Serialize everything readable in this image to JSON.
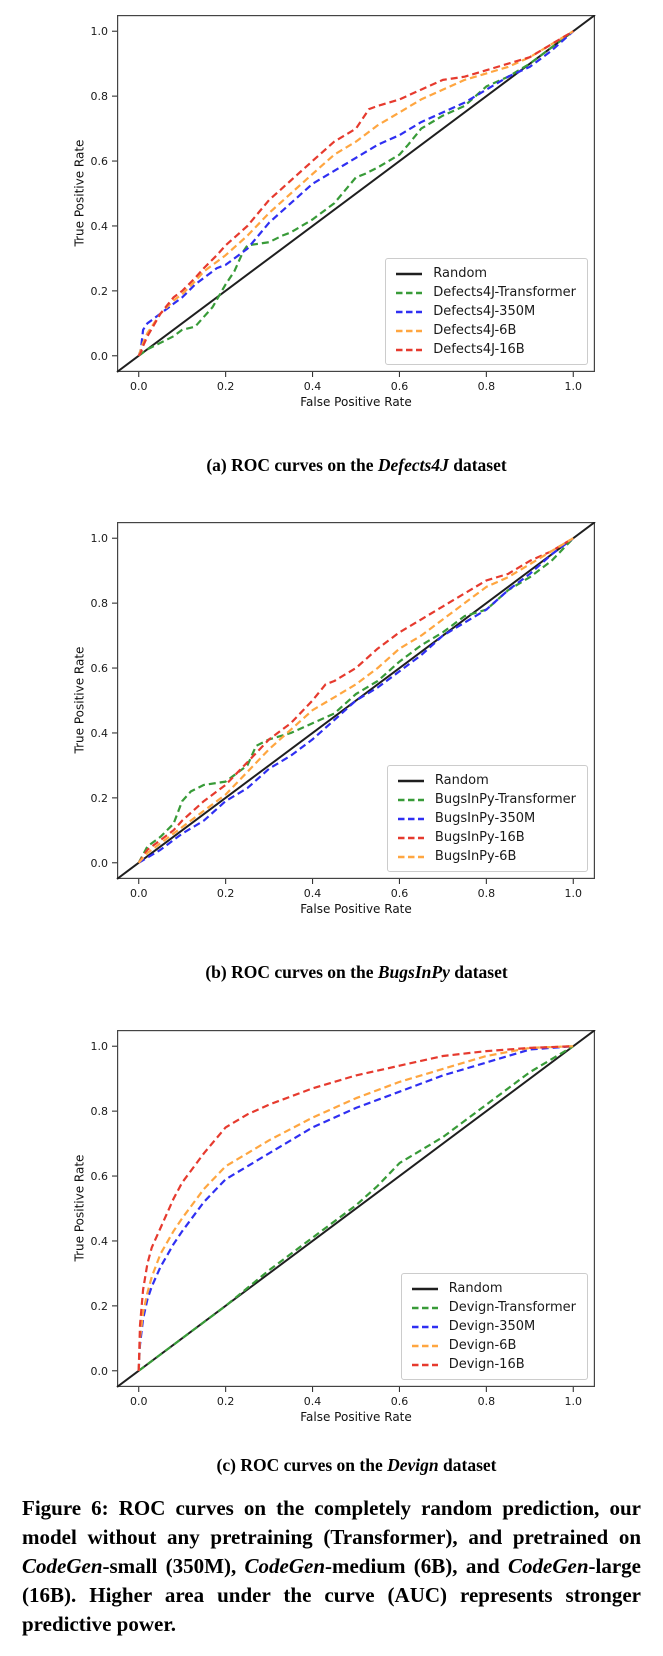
{
  "figure": {
    "caption": {
      "p1": "Figure 6: ROC curves on the completely random prediction, our model without any pretraining (Transformer), and pretrained on ",
      "i1": "CodeGen",
      "p2": "-small (350M), ",
      "i2": "CodeGen",
      "p3": "-medium (6B), and ",
      "i3": "CodeGen",
      "p4": "-large (16B). Higher area under the curve (AUC) represents stronger predictive power."
    }
  },
  "colors": {
    "random": "#1f1f1f",
    "transformer_green": "#389b38",
    "m350_blue": "#2f2ff2",
    "b6_orange": "#ffa640",
    "b16_red": "#e63a2e",
    "legend_border": "#cccccc",
    "spine": "#444444"
  },
  "chart_data": [
    {
      "type": "line",
      "id": "a",
      "caption_prefix": "(a) ROC curves on the ",
      "caption_dataset": "Defects4J",
      "caption_suffix": " dataset",
      "xlabel": "False Positive Rate",
      "ylabel": "True Positive Rate",
      "xlim": [
        -0.05,
        1.05
      ],
      "ylim": [
        -0.05,
        1.05
      ],
      "xticks": [
        0.0,
        0.2,
        0.4,
        0.6,
        0.8,
        1.0
      ],
      "yticks": [
        0.0,
        0.2,
        0.4,
        0.6,
        0.8,
        1.0
      ],
      "grid": false,
      "legend_position": "lower right",
      "series": [
        {
          "name": "Random",
          "color": "#1f1f1f",
          "style": "solid",
          "x": [
            -0.05,
            1.05
          ],
          "y": [
            -0.05,
            1.05
          ]
        },
        {
          "name": "Defects4J-Transformer",
          "color": "#389b38",
          "style": "dashed",
          "x": [
            0,
            0.02,
            0.05,
            0.08,
            0.1,
            0.13,
            0.15,
            0.17,
            0.2,
            0.22,
            0.24,
            0.25,
            0.3,
            0.33,
            0.35,
            0.4,
            0.45,
            0.5,
            0.52,
            0.55,
            0.6,
            0.62,
            0.65,
            0.7,
            0.75,
            0.8,
            0.85,
            0.9,
            0.95,
            1.0
          ],
          "y": [
            0,
            0.02,
            0.04,
            0.06,
            0.08,
            0.09,
            0.12,
            0.15,
            0.22,
            0.26,
            0.32,
            0.34,
            0.35,
            0.37,
            0.38,
            0.42,
            0.47,
            0.55,
            0.56,
            0.58,
            0.62,
            0.65,
            0.7,
            0.74,
            0.77,
            0.83,
            0.86,
            0.9,
            0.95,
            1.0
          ]
        },
        {
          "name": "Defects4J-350M",
          "color": "#2f2ff2",
          "style": "dashed",
          "x": [
            0,
            0.005,
            0.01,
            0.02,
            0.03,
            0.05,
            0.08,
            0.1,
            0.13,
            0.15,
            0.18,
            0.2,
            0.25,
            0.3,
            0.35,
            0.4,
            0.45,
            0.5,
            0.55,
            0.6,
            0.65,
            0.7,
            0.75,
            0.8,
            0.85,
            0.9,
            0.95,
            1.0
          ],
          "y": [
            0,
            0.02,
            0.08,
            0.1,
            0.11,
            0.13,
            0.16,
            0.18,
            0.22,
            0.24,
            0.27,
            0.28,
            0.33,
            0.41,
            0.47,
            0.53,
            0.57,
            0.61,
            0.65,
            0.68,
            0.72,
            0.75,
            0.78,
            0.82,
            0.86,
            0.89,
            0.94,
            1.0
          ]
        },
        {
          "name": "Defects4J-6B",
          "color": "#ffa640",
          "style": "dashed",
          "x": [
            0,
            0.005,
            0.01,
            0.02,
            0.05,
            0.08,
            0.1,
            0.13,
            0.15,
            0.18,
            0.2,
            0.25,
            0.3,
            0.35,
            0.4,
            0.45,
            0.5,
            0.55,
            0.6,
            0.65,
            0.7,
            0.75,
            0.8,
            0.85,
            0.9,
            0.95,
            1.0
          ],
          "y": [
            0,
            0.02,
            0.04,
            0.07,
            0.13,
            0.17,
            0.19,
            0.23,
            0.26,
            0.29,
            0.31,
            0.37,
            0.44,
            0.5,
            0.56,
            0.62,
            0.66,
            0.71,
            0.75,
            0.79,
            0.82,
            0.85,
            0.87,
            0.89,
            0.92,
            0.96,
            1.0
          ]
        },
        {
          "name": "Defects4J-16B",
          "color": "#e63a2e",
          "style": "dashed",
          "x": [
            0,
            0.005,
            0.01,
            0.02,
            0.05,
            0.08,
            0.1,
            0.13,
            0.15,
            0.18,
            0.2,
            0.25,
            0.3,
            0.35,
            0.4,
            0.45,
            0.5,
            0.53,
            0.55,
            0.6,
            0.65,
            0.7,
            0.75,
            0.8,
            0.85,
            0.9,
            0.95,
            1.0
          ],
          "y": [
            0,
            0.01,
            0.03,
            0.06,
            0.13,
            0.18,
            0.2,
            0.24,
            0.27,
            0.31,
            0.34,
            0.4,
            0.48,
            0.54,
            0.6,
            0.66,
            0.7,
            0.76,
            0.77,
            0.79,
            0.82,
            0.85,
            0.86,
            0.88,
            0.9,
            0.92,
            0.96,
            1.0
          ]
        }
      ]
    },
    {
      "type": "line",
      "id": "b",
      "caption_prefix": "(b) ROC curves on the ",
      "caption_dataset": "BugsInPy",
      "caption_suffix": " dataset",
      "xlabel": "False Positive Rate",
      "ylabel": "True Positive Rate",
      "xlim": [
        -0.05,
        1.05
      ],
      "ylim": [
        -0.05,
        1.05
      ],
      "xticks": [
        0.0,
        0.2,
        0.4,
        0.6,
        0.8,
        1.0
      ],
      "yticks": [
        0.0,
        0.2,
        0.4,
        0.6,
        0.8,
        1.0
      ],
      "grid": false,
      "legend_position": "lower right",
      "series": [
        {
          "name": "Random",
          "color": "#1f1f1f",
          "style": "solid",
          "x": [
            -0.05,
            1.05
          ],
          "y": [
            -0.05,
            1.05
          ]
        },
        {
          "name": "BugsInPy-Transformer",
          "color": "#389b38",
          "style": "dashed",
          "x": [
            0,
            0.02,
            0.05,
            0.08,
            0.1,
            0.12,
            0.15,
            0.2,
            0.25,
            0.27,
            0.3,
            0.35,
            0.4,
            0.45,
            0.5,
            0.55,
            0.6,
            0.65,
            0.7,
            0.75,
            0.8,
            0.85,
            0.9,
            0.95,
            1.0
          ],
          "y": [
            0,
            0.05,
            0.08,
            0.12,
            0.19,
            0.22,
            0.24,
            0.25,
            0.3,
            0.36,
            0.38,
            0.4,
            0.43,
            0.46,
            0.52,
            0.56,
            0.62,
            0.67,
            0.71,
            0.76,
            0.78,
            0.84,
            0.88,
            0.93,
            1.0
          ]
        },
        {
          "name": "BugsInPy-350M",
          "color": "#2f2ff2",
          "style": "dashed",
          "x": [
            0,
            0.05,
            0.1,
            0.15,
            0.2,
            0.25,
            0.3,
            0.35,
            0.4,
            0.45,
            0.5,
            0.55,
            0.6,
            0.65,
            0.7,
            0.75,
            0.8,
            0.85,
            0.9,
            0.95,
            1.0
          ],
          "y": [
            0,
            0.04,
            0.09,
            0.13,
            0.19,
            0.23,
            0.29,
            0.33,
            0.38,
            0.44,
            0.5,
            0.54,
            0.59,
            0.64,
            0.7,
            0.74,
            0.78,
            0.84,
            0.89,
            0.95,
            1.0
          ]
        },
        {
          "name": "BugsInPy-16B",
          "color": "#e63a2e",
          "style": "dashed",
          "x": [
            0,
            0.02,
            0.05,
            0.08,
            0.1,
            0.15,
            0.2,
            0.25,
            0.3,
            0.35,
            0.4,
            0.43,
            0.45,
            0.5,
            0.55,
            0.6,
            0.65,
            0.7,
            0.75,
            0.8,
            0.85,
            0.9,
            0.95,
            1.0
          ],
          "y": [
            0,
            0.04,
            0.07,
            0.1,
            0.13,
            0.19,
            0.24,
            0.31,
            0.38,
            0.43,
            0.5,
            0.55,
            0.56,
            0.6,
            0.66,
            0.71,
            0.75,
            0.79,
            0.83,
            0.87,
            0.89,
            0.93,
            0.96,
            1.0
          ]
        },
        {
          "name": "BugsInPy-6B",
          "color": "#ffa640",
          "style": "dashed",
          "x": [
            0,
            0.02,
            0.05,
            0.1,
            0.15,
            0.2,
            0.25,
            0.3,
            0.35,
            0.4,
            0.45,
            0.5,
            0.55,
            0.6,
            0.65,
            0.7,
            0.75,
            0.8,
            0.85,
            0.9,
            0.95,
            1.0
          ],
          "y": [
            0,
            0.03,
            0.06,
            0.11,
            0.16,
            0.21,
            0.28,
            0.35,
            0.41,
            0.47,
            0.51,
            0.55,
            0.6,
            0.66,
            0.7,
            0.75,
            0.8,
            0.85,
            0.88,
            0.92,
            0.96,
            1.0
          ]
        }
      ]
    },
    {
      "type": "line",
      "id": "c",
      "caption_prefix": "(c) ROC curves on the ",
      "caption_dataset": "Devign",
      "caption_suffix": " dataset",
      "xlabel": "False Positive Rate",
      "ylabel": "True Positive Rate",
      "xlim": [
        -0.05,
        1.05
      ],
      "ylim": [
        -0.05,
        1.05
      ],
      "xticks": [
        0.0,
        0.2,
        0.4,
        0.6,
        0.8,
        1.0
      ],
      "yticks": [
        0.0,
        0.2,
        0.4,
        0.6,
        0.8,
        1.0
      ],
      "grid": false,
      "legend_position": "lower right",
      "series": [
        {
          "name": "Random",
          "color": "#1f1f1f",
          "style": "solid",
          "x": [
            -0.05,
            1.05
          ],
          "y": [
            -0.05,
            1.05
          ]
        },
        {
          "name": "Devign-Transformer",
          "color": "#389b38",
          "style": "dashed",
          "x": [
            0,
            0.05,
            0.1,
            0.2,
            0.3,
            0.4,
            0.5,
            0.55,
            0.6,
            0.65,
            0.7,
            0.8,
            0.9,
            1.0
          ],
          "y": [
            0,
            0.05,
            0.1,
            0.2,
            0.31,
            0.41,
            0.51,
            0.57,
            0.64,
            0.68,
            0.72,
            0.82,
            0.92,
            1.0
          ]
        },
        {
          "name": "Devign-350M",
          "color": "#2f2ff2",
          "style": "dashed",
          "x": [
            0,
            0.003,
            0.01,
            0.02,
            0.03,
            0.05,
            0.08,
            0.1,
            0.15,
            0.2,
            0.25,
            0.3,
            0.4,
            0.5,
            0.6,
            0.7,
            0.8,
            0.9,
            1.0
          ],
          "y": [
            0,
            0.08,
            0.16,
            0.22,
            0.26,
            0.32,
            0.39,
            0.43,
            0.52,
            0.59,
            0.63,
            0.67,
            0.75,
            0.81,
            0.86,
            0.91,
            0.95,
            0.99,
            1.0
          ]
        },
        {
          "name": "Devign-6B",
          "color": "#ffa640",
          "style": "dashed",
          "x": [
            0,
            0.003,
            0.01,
            0.02,
            0.03,
            0.05,
            0.08,
            0.1,
            0.15,
            0.2,
            0.25,
            0.3,
            0.4,
            0.5,
            0.6,
            0.7,
            0.8,
            0.9,
            1.0
          ],
          "y": [
            0,
            0.1,
            0.18,
            0.24,
            0.29,
            0.36,
            0.43,
            0.47,
            0.56,
            0.63,
            0.67,
            0.71,
            0.78,
            0.84,
            0.89,
            0.93,
            0.97,
            0.995,
            1.0
          ]
        },
        {
          "name": "Devign-16B",
          "color": "#e63a2e",
          "style": "dashed",
          "x": [
            0,
            0.003,
            0.01,
            0.02,
            0.03,
            0.05,
            0.08,
            0.1,
            0.15,
            0.2,
            0.25,
            0.3,
            0.4,
            0.5,
            0.6,
            0.7,
            0.8,
            0.9,
            1.0
          ],
          "y": [
            0,
            0.14,
            0.25,
            0.33,
            0.38,
            0.44,
            0.53,
            0.58,
            0.67,
            0.75,
            0.79,
            0.82,
            0.87,
            0.91,
            0.94,
            0.97,
            0.985,
            0.995,
            1.0
          ]
        }
      ]
    }
  ]
}
